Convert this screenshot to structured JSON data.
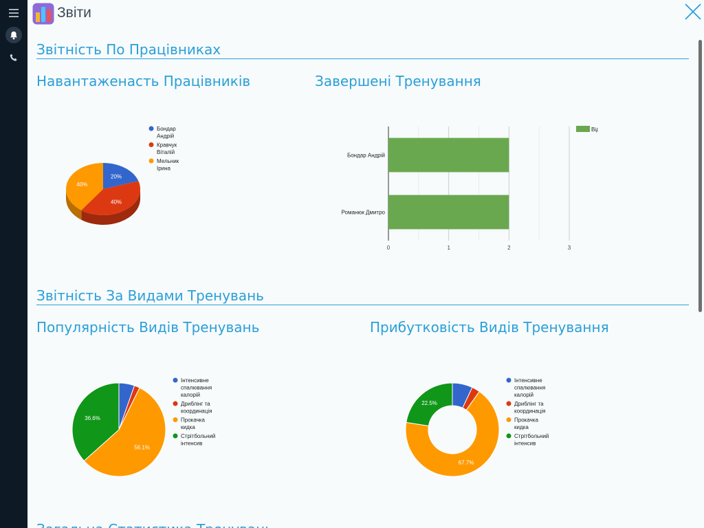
{
  "window": {
    "title": "Звіти",
    "icon": "bar-chart-app-icon"
  },
  "sidebar": {
    "items": [
      {
        "icon": "menu-icon"
      },
      {
        "icon": "bell-icon",
        "active": true
      },
      {
        "icon": "phone-icon"
      }
    ]
  },
  "sections": [
    {
      "title": "Звітність По Працівниках"
    },
    {
      "title": "Звітність За Видами Тренувань"
    },
    {
      "title": "Загальна Статистика Тренувань"
    }
  ],
  "chart_data": [
    {
      "type": "pie",
      "title": "Навантаженасть Працівників",
      "series": [
        {
          "name": "Бондар Андрій",
          "value": 20,
          "label": "20%",
          "color": "#3366cc"
        },
        {
          "name": "Кравчук Віталій",
          "value": 40,
          "label": "40%",
          "color": "#dc3912"
        },
        {
          "name": "Мельник Ірина",
          "value": 40,
          "label": "40%",
          "color": "#ff9900"
        }
      ]
    },
    {
      "type": "bar",
      "orientation": "horizontal",
      "title": "Завершені Тренування",
      "categories": [
        "Бондар Андрій",
        "Романюк Дмитро"
      ],
      "series": [
        {
          "name": "Відбувся",
          "values": [
            2,
            2
          ],
          "color": "#6aa84f"
        }
      ],
      "xlim": [
        0,
        3
      ],
      "xticks": [
        "0",
        "1",
        "2",
        "3"
      ],
      "grid": true,
      "legend": "top-right"
    },
    {
      "type": "pie",
      "title": "Популярність Видів Тренувань",
      "series": [
        {
          "name": "Інтенсивне спалювання калорій",
          "value": 5.4,
          "label": "",
          "color": "#3366cc"
        },
        {
          "name": "Дриблінг та координація",
          "value": 1.9,
          "label": "",
          "color": "#dc3912"
        },
        {
          "name": "Прокачка кидка",
          "value": 56.1,
          "label": "56.1%",
          "color": "#ff9900"
        },
        {
          "name": "Стрітбольний інтенсив",
          "value": 36.6,
          "label": "36.6%",
          "color": "#109618"
        }
      ]
    },
    {
      "type": "pie",
      "donut": true,
      "title": "Прибутковість Видів Тренування",
      "series": [
        {
          "name": "Інтенсивне спалювання калорій",
          "value": 7.0,
          "label": "",
          "color": "#3366cc"
        },
        {
          "name": "Дриблінг та координація",
          "value": 2.8,
          "label": "",
          "color": "#dc3912"
        },
        {
          "name": "Прокачка кидка",
          "value": 67.7,
          "label": "67.7%",
          "color": "#ff9900"
        },
        {
          "name": "Стрітбольний інтенсив",
          "value": 22.5,
          "label": "22.5%",
          "color": "#109618"
        }
      ]
    }
  ]
}
